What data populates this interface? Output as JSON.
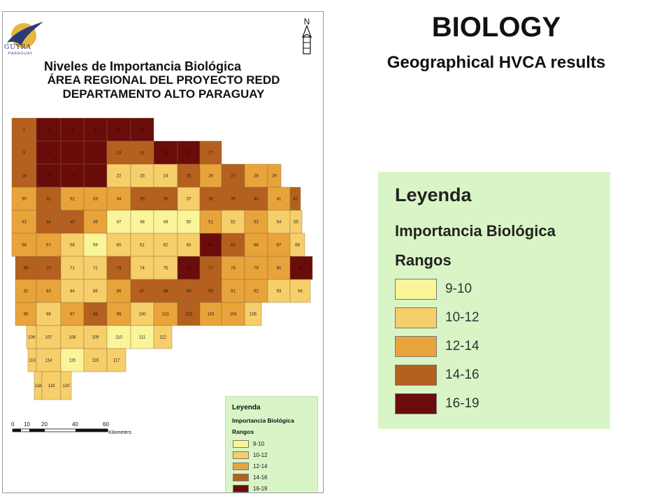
{
  "slide": {
    "title": "BIOLOGY",
    "subtitle": "Geographical HVCA results"
  },
  "map": {
    "title_lines": [
      "Niveles de Importancia Biológica",
      "ÁREA REGIONAL DEL PROYECTO REDD",
      "DEPARTAMENTO ALTO PARAGUAY"
    ],
    "logo_text": "GUYRA",
    "logo_subtext": "PARAGUAY",
    "north_label": "N",
    "scale_ticks": [
      "0",
      "10",
      "20",
      "40",
      "60"
    ],
    "scale_unit": "Kilometers",
    "palette": {
      "9-10": "#fbf59a",
      "10-12": "#f6cf6a",
      "12-14": "#e8a43a",
      "14-16": "#b5601e",
      "16-19": "#6a0c0a"
    },
    "cells": [
      {
        "id": "1",
        "class": "14-16"
      },
      {
        "id": "2",
        "class": "16-19"
      },
      {
        "id": "3",
        "class": "16-19"
      },
      {
        "id": "4",
        "class": "16-19"
      },
      {
        "id": "5",
        "class": "16-19"
      },
      {
        "id": "6",
        "class": "16-19"
      },
      {
        "id": "9",
        "class": "14-16"
      },
      {
        "id": "10",
        "class": "16-19"
      },
      {
        "id": "11",
        "class": "16-19"
      },
      {
        "id": "12",
        "class": "16-19"
      },
      {
        "id": "13",
        "class": "14-16"
      },
      {
        "id": "14",
        "class": "14-16"
      },
      {
        "id": "15",
        "class": "16-19"
      },
      {
        "id": "16",
        "class": "16-19"
      },
      {
        "id": "17",
        "class": "14-16"
      },
      {
        "id": "18",
        "class": "14-16"
      },
      {
        "id": "19",
        "class": "16-19"
      },
      {
        "id": "20",
        "class": "16-19"
      },
      {
        "id": "21",
        "class": "16-19"
      },
      {
        "id": "22",
        "class": "10-12"
      },
      {
        "id": "23",
        "class": "10-12"
      },
      {
        "id": "24",
        "class": "10-12"
      },
      {
        "id": "25",
        "class": "14-16"
      },
      {
        "id": "26",
        "class": "12-14"
      },
      {
        "id": "27",
        "class": "14-16"
      },
      {
        "id": "28",
        "class": "12-14"
      },
      {
        "id": "29",
        "class": "12-14"
      },
      {
        "id": "30",
        "class": "12-14"
      },
      {
        "id": "31",
        "class": "14-16"
      },
      {
        "id": "32",
        "class": "12-14"
      },
      {
        "id": "33",
        "class": "12-14"
      },
      {
        "id": "34",
        "class": "12-14"
      },
      {
        "id": "35",
        "class": "14-16"
      },
      {
        "id": "36",
        "class": "14-16"
      },
      {
        "id": "37",
        "class": "10-12"
      },
      {
        "id": "38",
        "class": "14-16"
      },
      {
        "id": "39",
        "class": "14-16"
      },
      {
        "id": "40",
        "class": "14-16"
      },
      {
        "id": "41",
        "class": "12-14"
      },
      {
        "id": "42",
        "class": "14-16"
      },
      {
        "id": "43",
        "class": "12-14"
      },
      {
        "id": "44",
        "class": "14-16"
      },
      {
        "id": "45",
        "class": "14-16"
      },
      {
        "id": "46",
        "class": "12-14"
      },
      {
        "id": "47",
        "class": "9-10"
      },
      {
        "id": "48",
        "class": "9-10"
      },
      {
        "id": "49",
        "class": "9-10"
      },
      {
        "id": "50",
        "class": "9-10"
      },
      {
        "id": "51",
        "class": "12-14"
      },
      {
        "id": "52",
        "class": "10-12"
      },
      {
        "id": "53",
        "class": "12-14"
      },
      {
        "id": "54",
        "class": "10-12"
      },
      {
        "id": "55",
        "class": "10-12"
      },
      {
        "id": "56",
        "class": "12-14"
      },
      {
        "id": "57",
        "class": "12-14"
      },
      {
        "id": "58",
        "class": "10-12"
      },
      {
        "id": "59",
        "class": "9-10"
      },
      {
        "id": "60",
        "class": "10-12"
      },
      {
        "id": "61",
        "class": "10-12"
      },
      {
        "id": "62",
        "class": "10-12"
      },
      {
        "id": "63",
        "class": "10-12"
      },
      {
        "id": "64",
        "class": "16-19"
      },
      {
        "id": "65",
        "class": "14-16"
      },
      {
        "id": "66",
        "class": "12-14"
      },
      {
        "id": "67",
        "class": "12-14"
      },
      {
        "id": "68",
        "class": "10-12"
      },
      {
        "id": "69",
        "class": "14-16"
      },
      {
        "id": "70",
        "class": "14-16"
      },
      {
        "id": "71",
        "class": "10-12"
      },
      {
        "id": "72",
        "class": "10-12"
      },
      {
        "id": "73",
        "class": "14-16"
      },
      {
        "id": "74",
        "class": "10-12"
      },
      {
        "id": "75",
        "class": "10-12"
      },
      {
        "id": "76",
        "class": "16-19"
      },
      {
        "id": "77",
        "class": "14-16"
      },
      {
        "id": "78",
        "class": "12-14"
      },
      {
        "id": "79",
        "class": "12-14"
      },
      {
        "id": "80",
        "class": "12-14"
      },
      {
        "id": "81",
        "class": "16-19"
      },
      {
        "id": "82",
        "class": "12-14"
      },
      {
        "id": "83",
        "class": "12-14"
      },
      {
        "id": "84",
        "class": "10-12"
      },
      {
        "id": "85",
        "class": "10-12"
      },
      {
        "id": "86",
        "class": "12-14"
      },
      {
        "id": "87",
        "class": "14-16"
      },
      {
        "id": "88",
        "class": "14-16"
      },
      {
        "id": "89",
        "class": "14-16"
      },
      {
        "id": "90",
        "class": "14-16"
      },
      {
        "id": "91",
        "class": "12-14"
      },
      {
        "id": "92",
        "class": "12-14"
      },
      {
        "id": "93",
        "class": "10-12"
      },
      {
        "id": "94",
        "class": "10-12"
      },
      {
        "id": "95",
        "class": "12-14"
      },
      {
        "id": "96",
        "class": "10-12"
      },
      {
        "id": "97",
        "class": "12-14"
      },
      {
        "id": "98",
        "class": "14-16"
      },
      {
        "id": "99",
        "class": "12-14"
      },
      {
        "id": "100",
        "class": "10-12"
      },
      {
        "id": "101",
        "class": "12-14"
      },
      {
        "id": "102",
        "class": "14-16"
      },
      {
        "id": "103",
        "class": "12-14"
      },
      {
        "id": "104",
        "class": "12-14"
      },
      {
        "id": "105",
        "class": "10-12"
      },
      {
        "id": "106",
        "class": "10-12"
      },
      {
        "id": "107",
        "class": "10-12"
      },
      {
        "id": "108",
        "class": "10-12"
      },
      {
        "id": "109",
        "class": "10-12"
      },
      {
        "id": "110",
        "class": "9-10"
      },
      {
        "id": "111",
        "class": "9-10"
      },
      {
        "id": "112",
        "class": "10-12"
      },
      {
        "id": "113",
        "class": "10-12"
      },
      {
        "id": "114",
        "class": "10-12"
      },
      {
        "id": "115",
        "class": "9-10"
      },
      {
        "id": "116",
        "class": "10-12"
      },
      {
        "id": "117",
        "class": "10-12"
      },
      {
        "id": "118",
        "class": "10-12"
      },
      {
        "id": "119",
        "class": "10-12"
      },
      {
        "id": "120",
        "class": "10-12"
      }
    ]
  },
  "legend": {
    "title": "Leyenda",
    "subtitle": "Importancia Biológica",
    "ranges_label": "Rangos",
    "items": [
      {
        "label": "9-10",
        "color": "#fbf59a"
      },
      {
        "label": "10-12",
        "color": "#f6cf6a"
      },
      {
        "label": "12-14",
        "color": "#e8a43a"
      },
      {
        "label": "14-16",
        "color": "#b5601e"
      },
      {
        "label": "16-19",
        "color": "#6a0c0a"
      }
    ]
  }
}
